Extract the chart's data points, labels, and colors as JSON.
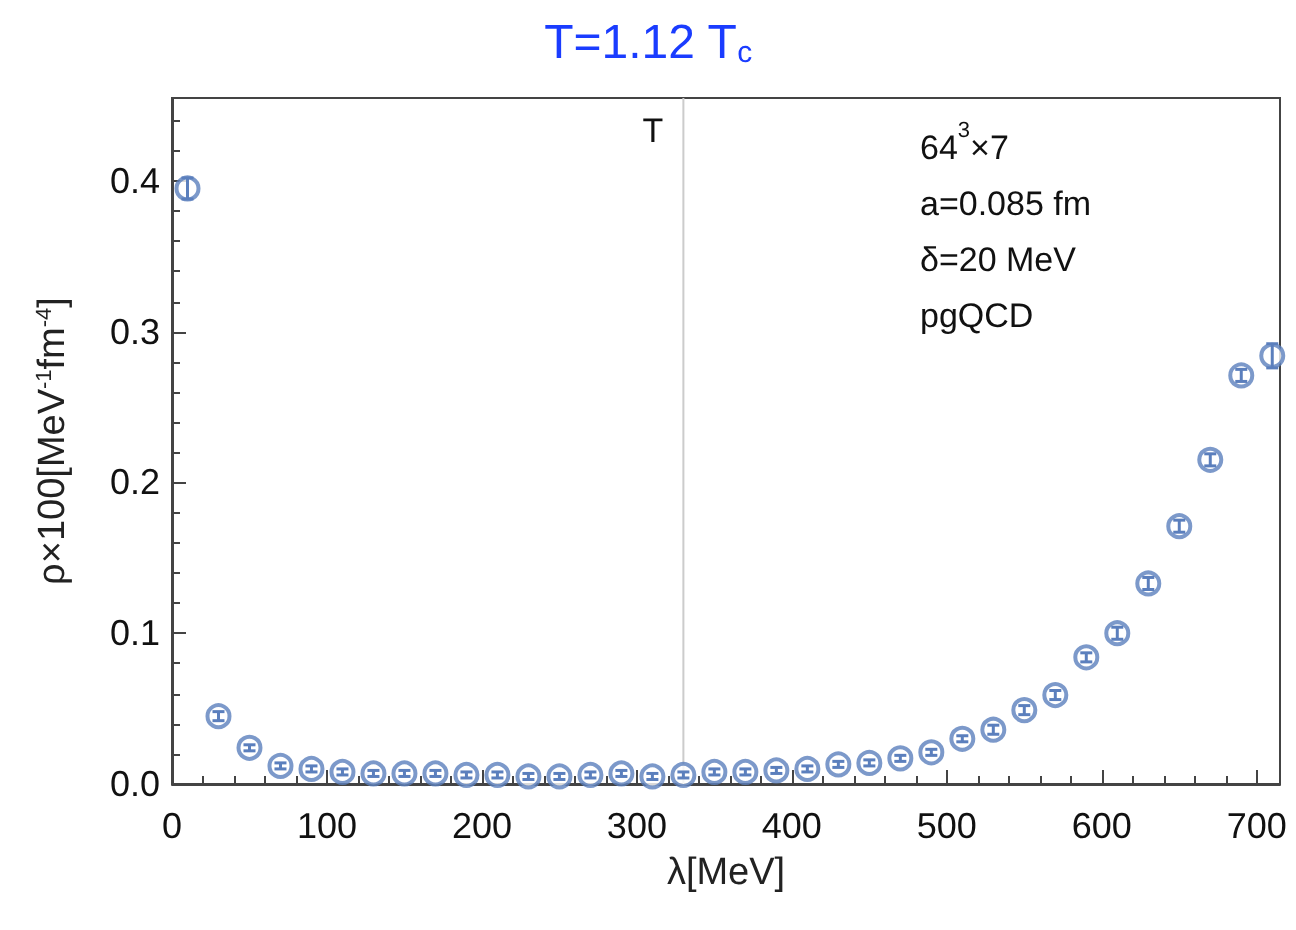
{
  "chart_data": {
    "type": "scatter",
    "title": "T=1.12 T$_{c}$",
    "xlabel": "λ[MeV]",
    "ylabel": "ρ×100[MeV$^{-1}$fm$^{-4}$]",
    "annotations": [
      "64$^{3}$×7",
      "a=0.085 fm",
      "δ=20 MeV",
      "pgQCD"
    ],
    "x": [
      10,
      30,
      50,
      70,
      90,
      110,
      130,
      150,
      170,
      190,
      210,
      230,
      250,
      270,
      290,
      310,
      330,
      350,
      370,
      390,
      410,
      430,
      450,
      470,
      490,
      510,
      530,
      550,
      570,
      590,
      610,
      630,
      650,
      670,
      690,
      710
    ],
    "series": [
      {
        "color": "#5b7fbd",
        "values": [
          0.395,
          0.045,
          0.024,
          0.012,
          0.01,
          0.008,
          0.007,
          0.007,
          0.007,
          0.006,
          0.006,
          0.005,
          0.005,
          0.006,
          0.007,
          0.005,
          0.006,
          0.008,
          0.008,
          0.009,
          0.01,
          0.013,
          0.014,
          0.017,
          0.021,
          0.03,
          0.036,
          0.049,
          0.059,
          0.084,
          0.1,
          0.133,
          0.171,
          0.215,
          0.271,
          0.284
        ],
        "errors": [
          0.007,
          0.003,
          0.002,
          0.002,
          0.002,
          0.002,
          0.002,
          0.002,
          0.002,
          0.002,
          0.002,
          0.002,
          0.002,
          0.002,
          0.002,
          0.002,
          0.002,
          0.002,
          0.002,
          0.002,
          0.002,
          0.002,
          0.002,
          0.002,
          0.002,
          0.002,
          0.003,
          0.003,
          0.003,
          0.003,
          0.004,
          0.004,
          0.004,
          0.004,
          0.004,
          0.008
        ]
      }
    ],
    "ref_lines": [
      {
        "axis": "x",
        "value": 330,
        "label": "T",
        "color": "#cccccc"
      }
    ],
    "xlim": [
      0,
      715
    ],
    "xticks": [
      0,
      100,
      200,
      300,
      400,
      500,
      600,
      700
    ],
    "ylim": [
      0,
      0.455
    ],
    "yticks": [
      {
        "value": 0,
        "label": "0.0"
      },
      0.1,
      0.2,
      0.3,
      0.4
    ],
    "marker": "circle",
    "grid": false
  }
}
